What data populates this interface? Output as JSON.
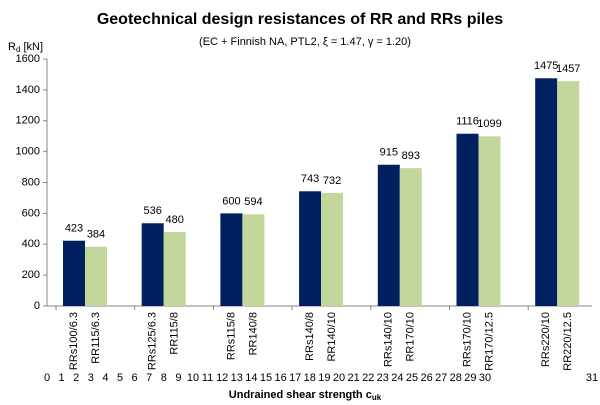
{
  "chart_data": {
    "type": "bar",
    "title": "Geotechnical design resistances of RR and RRs piles",
    "subtitle": "(EC + Finnish NA, PTL2, ξ = 1.47, γ = 1.20)",
    "y_label": [
      "R",
      "d",
      " [kN]"
    ],
    "x_label": [
      "Undrained shear strength c",
      "uk"
    ],
    "categories": [
      "RRs100/6.3",
      "RR115/6.3",
      "RRs125/6.3",
      "RR115/8",
      "RRs115/8",
      "RR140/8",
      "RRs140/8",
      "RR140/10",
      "RRs140/10",
      "RR170/10",
      "RRs170/10",
      "RR170/12.5",
      "RRs220/10",
      "RR220/12.5"
    ],
    "series": [
      {
        "color": "#002060",
        "values": [
          423,
          null,
          536,
          null,
          600,
          null,
          743,
          null,
          915,
          null,
          1116,
          null,
          1475,
          null
        ]
      },
      {
        "color": "#c3d69b",
        "values": [
          null,
          384,
          null,
          480,
          null,
          594,
          null,
          732,
          null,
          893,
          null,
          1099,
          null,
          1457
        ]
      }
    ],
    "axis_numbers": [
      0,
      1,
      2,
      3,
      4,
      5,
      6,
      7,
      8,
      9,
      10,
      11,
      12,
      13,
      14,
      15,
      16,
      17,
      18,
      19,
      20,
      21,
      22,
      23,
      24,
      25,
      26,
      27,
      28,
      29,
      30,
      31
    ],
    "ylim": [
      0,
      1600
    ],
    "yticks": [
      0,
      200,
      400,
      600,
      800,
      1000,
      1200,
      1400,
      1600
    ],
    "grid": false
  }
}
